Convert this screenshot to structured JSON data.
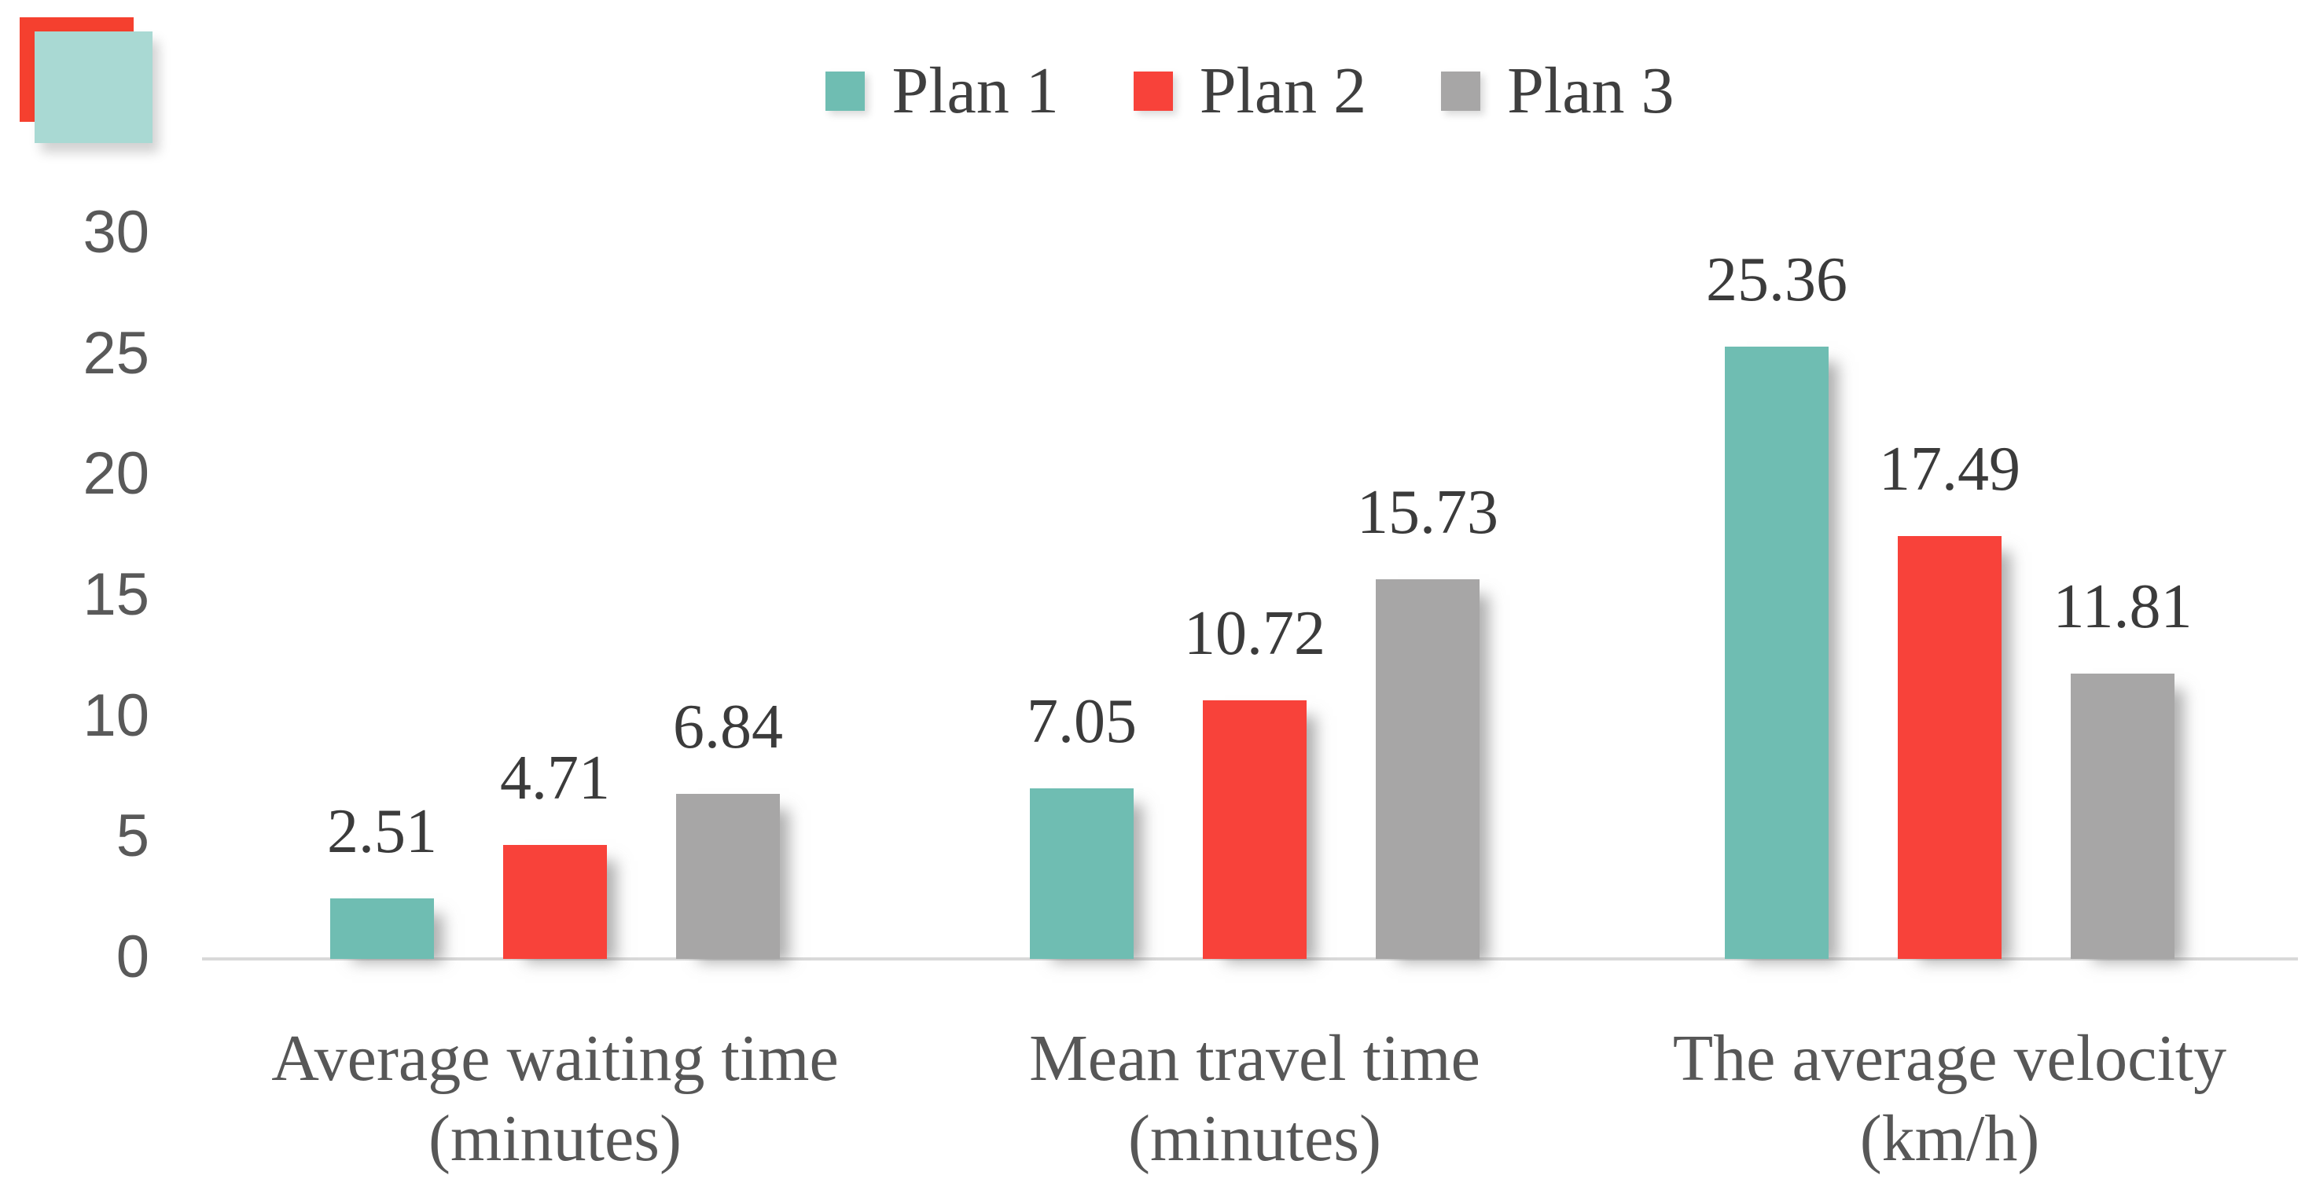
{
  "figure": {
    "background": "#ffffff",
    "corner_icon": {
      "red_square_color": "#f5402f",
      "teal_square_color": "#a9d9d3"
    }
  },
  "chart_data": {
    "type": "bar",
    "title": "",
    "legend_position": "top-center",
    "grid": "off",
    "categories": [
      {
        "line1": "Average waiting time",
        "line2": "(minutes)"
      },
      {
        "line1": "Mean travel time",
        "line2": "(minutes)"
      },
      {
        "line1": "The average velocity",
        "line2": "(km/h)"
      }
    ],
    "series": [
      {
        "name": "Plan 1",
        "color": "#6fbdb2",
        "values": [
          2.51,
          7.05,
          25.36
        ]
      },
      {
        "name": "Plan 2",
        "color": "#f8423a",
        "values": [
          4.71,
          10.72,
          17.49
        ]
      },
      {
        "name": "Plan 3",
        "color": "#a7a6a6",
        "values": [
          6.84,
          15.73,
          11.81
        ]
      }
    ],
    "y_axis": {
      "ticks": [
        "30",
        "25",
        "20",
        "15",
        "10",
        "5",
        "0"
      ],
      "tick_values": [
        30,
        25,
        20,
        15,
        10,
        5,
        0
      ],
      "min": 0,
      "max": 30
    },
    "colors": {
      "value_label_text": "#3b3b3b",
      "legend_text": "#3f3f3f",
      "axis_text": "#595959",
      "category_text": "#575757",
      "axis_line": "#d9d9d9"
    }
  }
}
